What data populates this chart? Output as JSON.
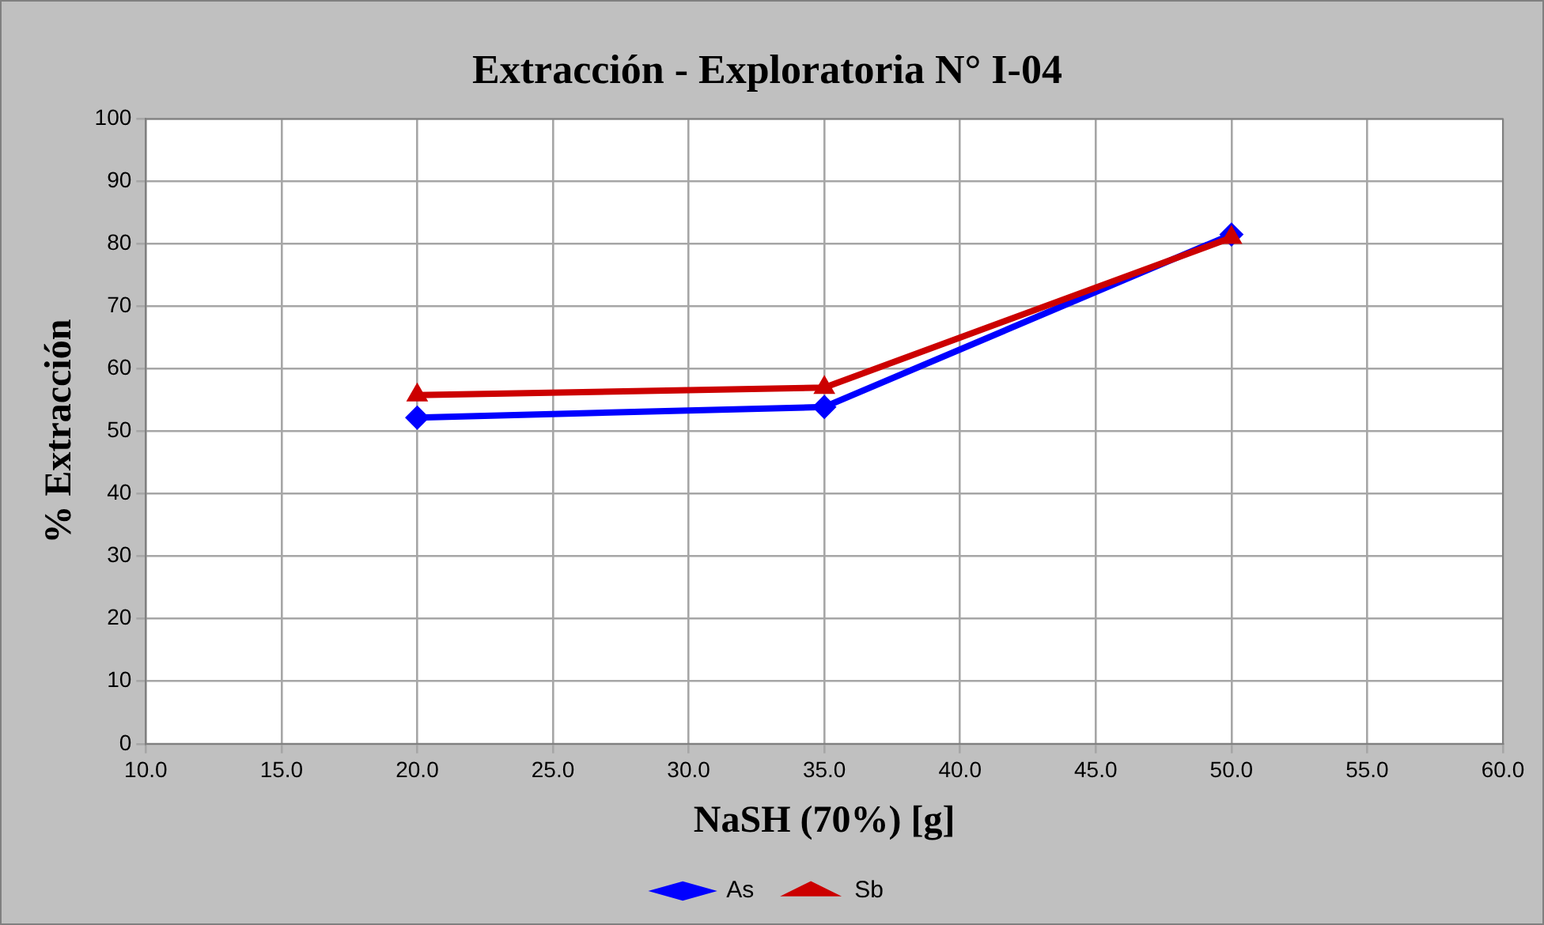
{
  "chart_data": {
    "type": "line",
    "title": "Extracción - Exploratoria N° I-04",
    "xlabel": "NaSH (70%) [g]",
    "ylabel": "% Extracción",
    "x": [
      20,
      35,
      50
    ],
    "series": [
      {
        "name": "As",
        "color": "#0000ff",
        "marker": "diamond",
        "values": [
          52.2,
          53.9,
          81.5
        ]
      },
      {
        "name": "Sb",
        "color": "#cc0000",
        "marker": "triangle",
        "values": [
          55.8,
          57.0,
          81.0
        ]
      }
    ],
    "xlim": [
      10,
      60
    ],
    "xticks": [
      {
        "value": 10,
        "label": "10.0"
      },
      {
        "value": 15,
        "label": "15.0"
      },
      {
        "value": 20,
        "label": "20.0"
      },
      {
        "value": 25,
        "label": "25.0"
      },
      {
        "value": 30,
        "label": "30.0"
      },
      {
        "value": 35,
        "label": "35.0"
      },
      {
        "value": 40,
        "label": "40.0"
      },
      {
        "value": 45,
        "label": "45.0"
      },
      {
        "value": 50,
        "label": "50.0"
      },
      {
        "value": 55,
        "label": "55.0"
      },
      {
        "value": 60,
        "label": "60.0"
      }
    ],
    "ylim": [
      0,
      100
    ],
    "yticks": [
      0,
      10,
      20,
      30,
      40,
      50,
      60,
      70,
      80,
      90,
      100
    ],
    "grid": true,
    "legend": "bottom",
    "line_style": "solid"
  }
}
